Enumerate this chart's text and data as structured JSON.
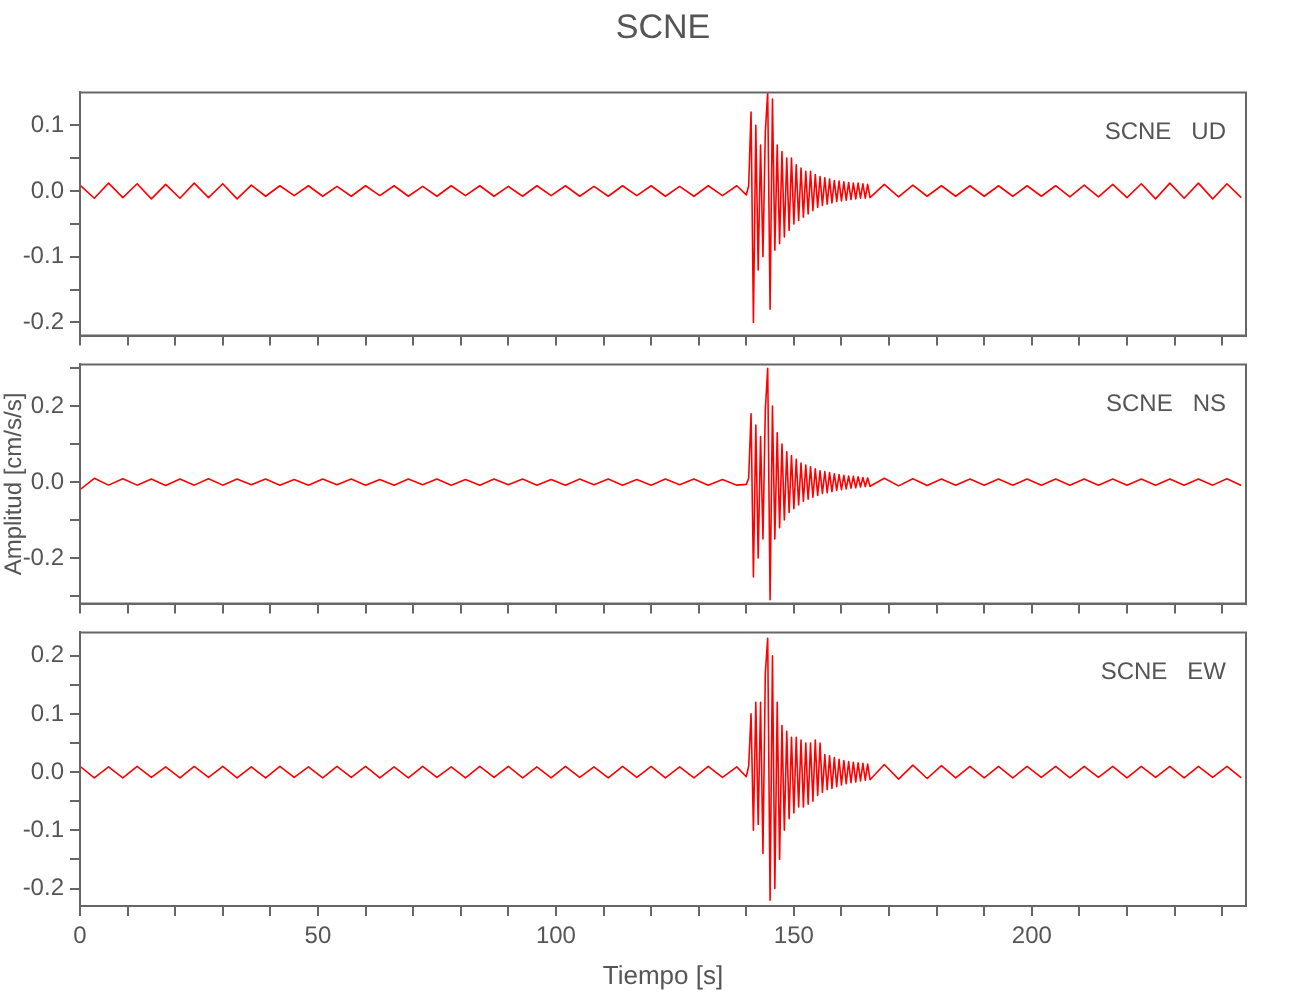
{
  "chart_data": [
    {
      "type": "line",
      "title": "SCNE",
      "annotations": [
        "SCNE   UD"
      ],
      "color": "#ff0000",
      "marker": "none",
      "grid": false,
      "tick_labels": "y",
      "xlim": [
        0,
        245
      ],
      "xticks": [
        0,
        {
          "value": 10,
          "label": null
        },
        {
          "value": 20,
          "label": null
        },
        {
          "value": 30,
          "label": null
        },
        {
          "value": 40,
          "label": null
        },
        50,
        {
          "value": 60,
          "label": null
        },
        {
          "value": 70,
          "label": null
        },
        {
          "value": 80,
          "label": null
        },
        {
          "value": 90,
          "label": null
        },
        100,
        {
          "value": 110,
          "label": null
        },
        {
          "value": 120,
          "label": null
        },
        {
          "value": 130,
          "label": null
        },
        {
          "value": 140,
          "label": null
        },
        150,
        {
          "value": 160,
          "label": null
        },
        {
          "value": 170,
          "label": null
        },
        {
          "value": 180,
          "label": null
        },
        {
          "value": 190,
          "label": null
        },
        200,
        {
          "value": 210,
          "label": null
        },
        {
          "value": 220,
          "label": null
        },
        {
          "value": 230,
          "label": null
        },
        {
          "value": 240,
          "label": null
        }
      ],
      "ylim": [
        -0.22,
        0.15
      ],
      "yticks": [
        {
          "value": -0.2,
          "label": "-0.2"
        },
        {
          "value": -0.15,
          "label": null
        },
        {
          "value": -0.1,
          "label": "-0.1"
        },
        {
          "value": -0.05,
          "label": null
        },
        {
          "value": 0,
          "label": "0.0"
        },
        {
          "value": 0.05,
          "label": null
        },
        {
          "value": 0.1,
          "label": "0.1"
        }
      ],
      "x": [
        0,
        3,
        6,
        9,
        12,
        15,
        18,
        21,
        24,
        27,
        30,
        33,
        36,
        39,
        42,
        45,
        48,
        51,
        54,
        57,
        60,
        63,
        66,
        69,
        72,
        75,
        78,
        81,
        84,
        87,
        90,
        93,
        96,
        99,
        102,
        105,
        108,
        111,
        114,
        117,
        120,
        123,
        126,
        129,
        132,
        135,
        138,
        140,
        140.5,
        141,
        141.5,
        142,
        142.5,
        143,
        143.5,
        144,
        144.5,
        145,
        145.5,
        146,
        146.5,
        147,
        147.5,
        148,
        148.5,
        149,
        149.5,
        150,
        150.5,
        151,
        151.5,
        152,
        152.5,
        153,
        153.5,
        154,
        154.5,
        155,
        155.5,
        156,
        156.5,
        157,
        157.5,
        158,
        158.5,
        159,
        159.5,
        160,
        160.5,
        161,
        161.5,
        162,
        162.5,
        163,
        163.5,
        164,
        164.5,
        165,
        165.5,
        166,
        169,
        172,
        175,
        178,
        181,
        184,
        187,
        190,
        193,
        196,
        199,
        202,
        205,
        208,
        211,
        214,
        217,
        220,
        223,
        226,
        229,
        232,
        235,
        238,
        241,
        244
      ],
      "values": [
        0.009,
        -0.011,
        0.012,
        -0.01,
        0.011,
        -0.012,
        0.01,
        -0.011,
        0.012,
        -0.01,
        0.011,
        -0.012,
        0.009,
        -0.008,
        0.008,
        -0.007,
        0.008,
        -0.008,
        0.007,
        -0.008,
        0.008,
        -0.007,
        0.008,
        -0.008,
        0.007,
        -0.008,
        0.008,
        -0.007,
        0.008,
        -0.008,
        0.007,
        -0.008,
        0.008,
        -0.007,
        0.008,
        -0.008,
        0.007,
        -0.008,
        0.008,
        -0.007,
        0.008,
        -0.008,
        0.007,
        -0.008,
        0.008,
        -0.007,
        0.008,
        -0.006,
        0.008,
        0.12,
        -0.2,
        0.1,
        -0.12,
        0.07,
        -0.1,
        0.09,
        0.15,
        -0.18,
        0.14,
        -0.09,
        0.07,
        -0.08,
        0.06,
        -0.07,
        0.05,
        -0.06,
        0.05,
        -0.05,
        0.04,
        -0.045,
        0.035,
        -0.04,
        0.03,
        -0.035,
        0.03,
        -0.03,
        0.025,
        -0.025,
        0.022,
        -0.022,
        0.02,
        -0.02,
        0.018,
        -0.018,
        0.016,
        -0.016,
        0.015,
        -0.015,
        0.014,
        -0.014,
        0.013,
        -0.013,
        0.012,
        -0.012,
        0.012,
        -0.011,
        0.011,
        -0.011,
        0.01,
        -0.01,
        0.01,
        -0.009,
        0.009,
        -0.008,
        0.008,
        -0.008,
        0.008,
        -0.008,
        0.008,
        -0.008,
        0.008,
        -0.008,
        0.008,
        -0.009,
        0.009,
        -0.009,
        0.01,
        -0.01,
        0.011,
        -0.012,
        0.012,
        -0.011,
        0.012,
        -0.012,
        0.011,
        -0.01
      ]
    },
    {
      "type": "line",
      "ylabel": "Amplitud [cm/s/s]",
      "annotations": [
        "SCNE   NS"
      ],
      "color": "#ff0000",
      "marker": "none",
      "grid": false,
      "tick_labels": "y",
      "xlim": [
        0,
        245
      ],
      "xticks": [
        0,
        {
          "value": 10,
          "label": null
        },
        {
          "value": 20,
          "label": null
        },
        {
          "value": 30,
          "label": null
        },
        {
          "value": 40,
          "label": null
        },
        50,
        {
          "value": 60,
          "label": null
        },
        {
          "value": 70,
          "label": null
        },
        {
          "value": 80,
          "label": null
        },
        {
          "value": 90,
          "label": null
        },
        100,
        {
          "value": 110,
          "label": null
        },
        {
          "value": 120,
          "label": null
        },
        {
          "value": 130,
          "label": null
        },
        {
          "value": 140,
          "label": null
        },
        150,
        {
          "value": 160,
          "label": null
        },
        {
          "value": 170,
          "label": null
        },
        {
          "value": 180,
          "label": null
        },
        {
          "value": 190,
          "label": null
        },
        200,
        {
          "value": 210,
          "label": null
        },
        {
          "value": 220,
          "label": null
        },
        {
          "value": 230,
          "label": null
        },
        {
          "value": 240,
          "label": null
        }
      ],
      "ylim": [
        -0.32,
        0.31
      ],
      "yticks": [
        {
          "value": -0.3,
          "label": null
        },
        {
          "value": -0.2,
          "label": "-0.2"
        },
        {
          "value": -0.1,
          "label": null
        },
        {
          "value": 0,
          "label": "0.0"
        },
        {
          "value": 0.1,
          "label": null
        },
        {
          "value": 0.2,
          "label": "0.2"
        },
        {
          "value": 0.3,
          "label": null
        }
      ],
      "x": [
        0,
        3,
        6,
        9,
        12,
        15,
        18,
        21,
        24,
        27,
        30,
        33,
        36,
        39,
        42,
        45,
        48,
        51,
        54,
        57,
        60,
        63,
        66,
        69,
        72,
        75,
        78,
        81,
        84,
        87,
        90,
        93,
        96,
        99,
        102,
        105,
        108,
        111,
        114,
        117,
        120,
        123,
        126,
        129,
        132,
        135,
        138,
        140,
        140.5,
        141,
        141.5,
        142,
        142.5,
        143,
        143.5,
        144,
        144.5,
        145,
        145.5,
        146,
        146.5,
        147,
        147.5,
        148,
        148.5,
        149,
        149.5,
        150,
        150.5,
        151,
        151.5,
        152,
        152.5,
        153,
        153.5,
        154,
        154.5,
        155,
        155.5,
        156,
        156.5,
        157,
        157.5,
        158,
        158.5,
        159,
        159.5,
        160,
        160.5,
        161,
        161.5,
        162,
        162.5,
        163,
        163.5,
        164,
        164.5,
        165,
        165.5,
        166,
        169,
        172,
        175,
        178,
        181,
        184,
        187,
        190,
        193,
        196,
        199,
        202,
        205,
        208,
        211,
        214,
        217,
        220,
        223,
        226,
        229,
        232,
        235,
        238,
        241,
        244
      ],
      "values": [
        -0.02,
        0.01,
        -0.008,
        0.009,
        -0.008,
        0.008,
        -0.009,
        0.008,
        -0.008,
        0.009,
        -0.008,
        0.008,
        -0.007,
        0.008,
        -0.008,
        0.007,
        -0.008,
        0.008,
        -0.007,
        0.008,
        -0.008,
        0.007,
        -0.008,
        0.008,
        -0.007,
        0.008,
        -0.008,
        0.007,
        -0.008,
        0.008,
        -0.007,
        0.008,
        -0.008,
        0.007,
        -0.008,
        0.008,
        -0.007,
        0.008,
        -0.008,
        0.007,
        -0.008,
        0.008,
        -0.007,
        0.008,
        -0.008,
        0.007,
        -0.008,
        -0.006,
        0.01,
        0.18,
        -0.25,
        0.15,
        -0.2,
        0.12,
        -0.15,
        0.19,
        0.3,
        -0.31,
        0.2,
        -0.15,
        0.13,
        -0.12,
        0.1,
        -0.1,
        0.08,
        -0.08,
        0.07,
        -0.07,
        0.06,
        -0.06,
        0.05,
        -0.05,
        0.045,
        -0.045,
        0.04,
        -0.04,
        0.035,
        -0.035,
        0.03,
        -0.03,
        0.028,
        -0.028,
        0.025,
        -0.025,
        0.022,
        -0.022,
        0.02,
        -0.02,
        0.018,
        -0.018,
        0.016,
        -0.016,
        0.015,
        -0.015,
        0.014,
        -0.013,
        0.012,
        -0.012,
        0.011,
        -0.011,
        0.01,
        -0.01,
        0.009,
        -0.009,
        0.008,
        -0.008,
        0.008,
        -0.008,
        0.008,
        -0.008,
        0.008,
        -0.008,
        0.008,
        -0.008,
        0.008,
        -0.008,
        0.008,
        -0.008,
        0.008,
        -0.008,
        0.008,
        -0.008,
        0.008,
        -0.008,
        0.009,
        -0.009
      ]
    },
    {
      "type": "line",
      "xlabel": "Tiempo [s]",
      "annotations": [
        "SCNE   EW"
      ],
      "color": "#ff0000",
      "marker": "none",
      "grid": false,
      "xlim": [
        0,
        245
      ],
      "xticks": [
        0,
        {
          "value": 10,
          "label": null
        },
        {
          "value": 20,
          "label": null
        },
        {
          "value": 30,
          "label": null
        },
        {
          "value": 40,
          "label": null
        },
        50,
        {
          "value": 60,
          "label": null
        },
        {
          "value": 70,
          "label": null
        },
        {
          "value": 80,
          "label": null
        },
        {
          "value": 90,
          "label": null
        },
        100,
        {
          "value": 110,
          "label": null
        },
        {
          "value": 120,
          "label": null
        },
        {
          "value": 130,
          "label": null
        },
        {
          "value": 140,
          "label": null
        },
        150,
        {
          "value": 160,
          "label": null
        },
        {
          "value": 170,
          "label": null
        },
        {
          "value": 180,
          "label": null
        },
        {
          "value": 190,
          "label": null
        },
        200,
        {
          "value": 210,
          "label": null
        },
        {
          "value": 220,
          "label": null
        },
        {
          "value": 230,
          "label": null
        },
        {
          "value": 240,
          "label": null
        }
      ],
      "ylim": [
        -0.23,
        0.24
      ],
      "yticks": [
        {
          "value": -0.2,
          "label": "-0.2"
        },
        {
          "value": -0.15,
          "label": null
        },
        {
          "value": -0.1,
          "label": "-0.1"
        },
        {
          "value": -0.05,
          "label": null
        },
        {
          "value": 0,
          "label": "0.0"
        },
        {
          "value": 0.05,
          "label": null
        },
        {
          "value": 0.1,
          "label": "0.1"
        },
        {
          "value": 0.15,
          "label": null
        },
        {
          "value": 0.2,
          "label": "0.2"
        }
      ],
      "x": [
        0,
        3,
        6,
        9,
        12,
        15,
        18,
        21,
        24,
        27,
        30,
        33,
        36,
        39,
        42,
        45,
        48,
        51,
        54,
        57,
        60,
        63,
        66,
        69,
        72,
        75,
        78,
        81,
        84,
        87,
        90,
        93,
        96,
        99,
        102,
        105,
        108,
        111,
        114,
        117,
        120,
        123,
        126,
        129,
        132,
        135,
        138,
        140,
        140.5,
        141,
        141.5,
        142,
        142.5,
        143,
        143.5,
        144,
        144.5,
        145,
        145.5,
        146,
        146.5,
        147,
        147.5,
        148,
        148.5,
        149,
        149.5,
        150,
        150.5,
        151,
        151.5,
        152,
        152.5,
        153,
        153.5,
        154,
        154.5,
        155,
        155.5,
        156,
        156.5,
        157,
        157.5,
        158,
        158.5,
        159,
        159.5,
        160,
        160.5,
        161,
        161.5,
        162,
        162.5,
        163,
        163.5,
        164,
        164.5,
        165,
        165.5,
        166,
        169,
        172,
        175,
        178,
        181,
        184,
        187,
        190,
        193,
        196,
        199,
        202,
        205,
        208,
        211,
        214,
        217,
        220,
        223,
        226,
        229,
        232,
        235,
        238,
        241,
        244
      ],
      "values": [
        0.01,
        -0.01,
        0.009,
        -0.01,
        0.01,
        -0.009,
        0.009,
        -0.01,
        0.01,
        -0.009,
        0.01,
        -0.01,
        0.009,
        -0.01,
        0.01,
        -0.009,
        0.009,
        -0.01,
        0.01,
        -0.009,
        0.01,
        -0.01,
        0.009,
        -0.01,
        0.01,
        -0.009,
        0.009,
        -0.01,
        0.01,
        -0.009,
        0.01,
        -0.01,
        0.009,
        -0.01,
        0.01,
        -0.009,
        0.009,
        -0.01,
        0.01,
        -0.009,
        0.01,
        -0.01,
        0.009,
        -0.01,
        0.01,
        -0.009,
        0.009,
        -0.008,
        0.01,
        0.1,
        -0.1,
        0.12,
        -0.09,
        0.12,
        -0.14,
        0.17,
        0.23,
        -0.22,
        0.2,
        -0.2,
        0.12,
        -0.15,
        0.08,
        -0.1,
        0.07,
        -0.08,
        0.06,
        -0.07,
        0.06,
        -0.06,
        0.055,
        -0.06,
        0.05,
        -0.055,
        0.05,
        -0.05,
        0.055,
        -0.04,
        0.05,
        -0.035,
        0.03,
        -0.03,
        0.028,
        -0.028,
        0.025,
        -0.025,
        0.022,
        -0.022,
        0.02,
        -0.02,
        0.018,
        -0.018,
        0.017,
        -0.017,
        0.016,
        -0.015,
        0.015,
        -0.014,
        0.014,
        -0.013,
        0.013,
        -0.012,
        0.012,
        -0.011,
        0.011,
        -0.01,
        0.01,
        -0.01,
        0.01,
        -0.01,
        0.01,
        -0.009,
        0.01,
        -0.01,
        0.01,
        -0.009,
        0.01,
        -0.01,
        0.01,
        -0.009,
        0.01,
        -0.01,
        0.01,
        -0.009,
        0.01,
        -0.01
      ]
    }
  ]
}
